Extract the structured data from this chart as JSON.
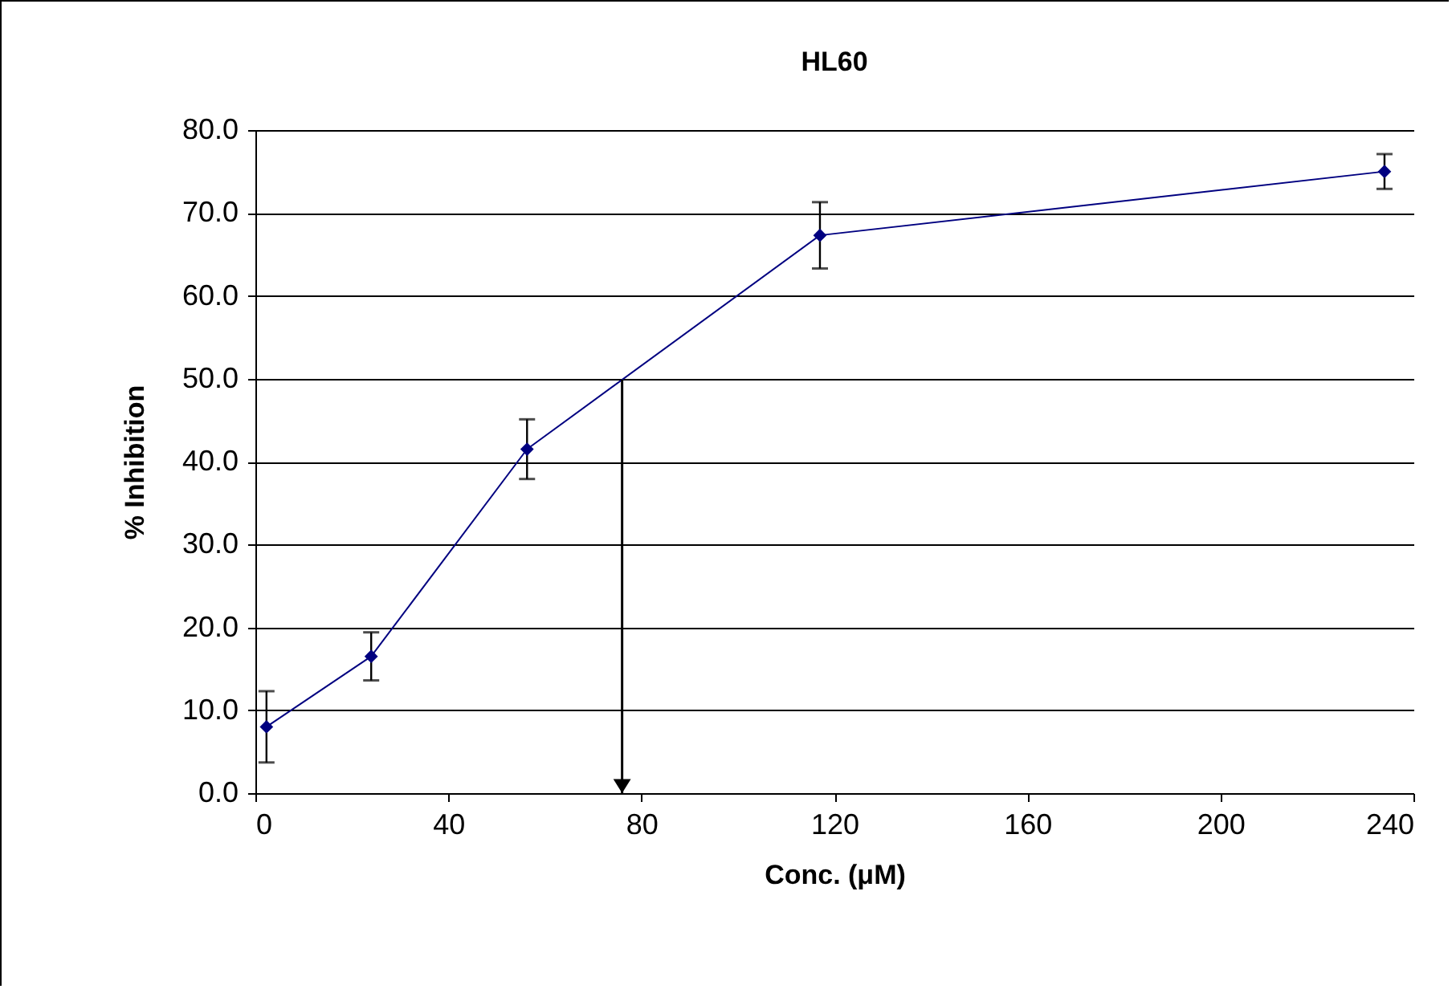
{
  "chart_data": {
    "type": "line",
    "title": "HL60",
    "xlabel": "Conc. (μM)",
    "ylabel": "% Inhibition",
    "x": [
      2.3,
      24,
      56.3,
      117,
      234
    ],
    "series": [
      {
        "color": "#000080",
        "values": [
          8.0,
          16.5,
          41.5,
          67.3,
          75.0
        ],
        "errors": [
          4.3,
          2.9,
          3.6,
          4.0,
          2.1
        ]
      }
    ],
    "xlim": [
      0,
      240
    ],
    "xticks": [
      0,
      40,
      80,
      120,
      160,
      200,
      240
    ],
    "ylim": [
      0,
      80
    ],
    "yticks": [
      {
        "value": 0,
        "label": "0.0"
      },
      {
        "value": 10,
        "label": "10.0"
      },
      {
        "value": 20,
        "label": "20.0"
      },
      {
        "value": 30,
        "label": "30.0"
      },
      {
        "value": 40,
        "label": "40.0"
      },
      {
        "value": 50,
        "label": "50.0"
      },
      {
        "value": 60,
        "label": "60.0"
      },
      {
        "value": 70,
        "label": "70.0"
      },
      {
        "value": 80,
        "label": "80.0"
      }
    ],
    "ref_lines": [
      {
        "axis": "x",
        "value": 76,
        "color": "#000000"
      }
    ],
    "grid": "y",
    "marker": "diamond",
    "line_style": "solid"
  }
}
